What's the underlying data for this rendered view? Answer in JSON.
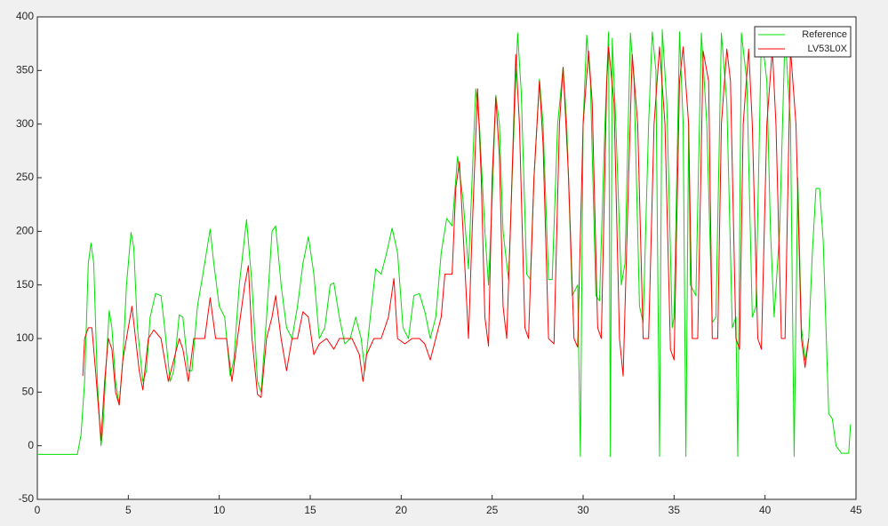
{
  "chart_data": {
    "type": "line",
    "xlim": [
      0,
      45
    ],
    "xticks": [
      0,
      5,
      10,
      15,
      20,
      25,
      30,
      35,
      40,
      45
    ],
    "ylim": [
      -50,
      400
    ],
    "yticks": [
      -50,
      0,
      50,
      100,
      150,
      200,
      250,
      300,
      350,
      400
    ],
    "grid": false,
    "legend": "top-right",
    "series": [
      {
        "name": "Reference",
        "color": "#00e000",
        "x": [
          0,
          2.2,
          2.4,
          2.6,
          2.8,
          2.95,
          3.1,
          3.3,
          3.5,
          3.6,
          3.8,
          3.95,
          4.1,
          4.3,
          4.5,
          4.7,
          4.9,
          5.15,
          5.3,
          5.5,
          5.8,
          6,
          6.2,
          6.5,
          6.8,
          7,
          7.3,
          7.5,
          7.8,
          8,
          8.3,
          8.5,
          8.8,
          9.1,
          9.5,
          9.7,
          10,
          10.3,
          10.6,
          10.8,
          11.1,
          11.5,
          11.8,
          12.1,
          12.3,
          12.6,
          12.9,
          13.1,
          13.4,
          13.7,
          14,
          14.3,
          14.6,
          14.9,
          15.2,
          15.5,
          15.8,
          16.1,
          16.3,
          16.6,
          16.9,
          17.2,
          17.5,
          17.8,
          18,
          18.3,
          18.6,
          18.9,
          19.2,
          19.5,
          19.8,
          20.1,
          20.4,
          20.7,
          21,
          21.3,
          21.6,
          21.9,
          22.2,
          22.5,
          22.8,
          23.1,
          23.4,
          23.7,
          23.9,
          24.1,
          24.3,
          24.6,
          24.8,
          25,
          25.2,
          25.4,
          25.6,
          25.9,
          26.1,
          26.4,
          26.6,
          26.9,
          27.1,
          27.3,
          27.6,
          27.8,
          28.1,
          28.3,
          28.6,
          28.9,
          29.1,
          29.4,
          29.7,
          29.85,
          30,
          30.2,
          30.4,
          30.7,
          30.9,
          31.2,
          31.4,
          31.5,
          31.6,
          31.8,
          32.1,
          32.3,
          32.6,
          32.8,
          33.1,
          33.3,
          33.6,
          33.8,
          34,
          34.2,
          34.35,
          34.6,
          34.9,
          35,
          35.3,
          35.5,
          35.65,
          35.8,
          35.9,
          36.2,
          36.5,
          36.8,
          37.1,
          37.3,
          37.6,
          37.9,
          38.2,
          38.4,
          38.5,
          38.7,
          39,
          39.3,
          39.5,
          39.8,
          40.1,
          40.3,
          40.5,
          40.8,
          41.1,
          41.4,
          41.6,
          41.8,
          42,
          42.2,
          42.4,
          42.6,
          42.8,
          43,
          43.2,
          43.5,
          43.7,
          43.9,
          44.2,
          44.4,
          44.6,
          44.7
        ],
        "values": [
          -8,
          -8,
          10,
          60,
          170,
          189,
          170,
          60,
          0,
          15,
          80,
          126,
          110,
          60,
          38,
          80,
          150,
          199,
          185,
          110,
          60,
          70,
          120,
          142,
          140,
          110,
          60,
          70,
          122,
          120,
          70,
          70,
          130,
          160,
          202,
          170,
          130,
          120,
          65,
          80,
          150,
          211,
          150,
          60,
          50,
          120,
          200,
          205,
          150,
          110,
          100,
          130,
          170,
          195,
          160,
          100,
          110,
          150,
          152,
          120,
          95,
          100,
          120,
          100,
          70,
          120,
          165,
          160,
          180,
          203,
          180,
          110,
          100,
          140,
          142,
          125,
          100,
          120,
          180,
          212,
          205,
          270,
          230,
          165,
          250,
          333,
          300,
          200,
          150,
          230,
          327,
          300,
          200,
          155,
          250,
          385,
          330,
          160,
          155,
          250,
          342,
          300,
          155,
          155,
          300,
          353,
          300,
          140,
          150,
          -10,
          300,
          383,
          340,
          140,
          135,
          300,
          386,
          -10,
          380,
          300,
          150,
          170,
          385,
          340,
          130,
          115,
          300,
          386,
          350,
          -10,
          388,
          320,
          110,
          120,
          386,
          300,
          -10,
          300,
          150,
          140,
          385,
          300,
          115,
          120,
          385,
          320,
          110,
          120,
          -10,
          385,
          340,
          120,
          130,
          385,
          340,
          200,
          120,
          200,
          385,
          300,
          -10,
          250,
          110,
          80,
          100,
          180,
          240,
          240,
          190,
          30,
          25,
          0,
          -7,
          -7,
          -7,
          20
        ]
      },
      {
        "name": "LV53L0X",
        "color": "#ff0000",
        "x": [
          2.5,
          2.6,
          2.8,
          3,
          3.2,
          3.5,
          3.7,
          3.9,
          4.1,
          4.3,
          4.5,
          4.7,
          4.9,
          5.2,
          5.4,
          5.6,
          5.8,
          6.1,
          6.4,
          6.8,
          7,
          7.2,
          7.5,
          7.8,
          8,
          8.3,
          8.6,
          8.9,
          9.2,
          9.5,
          9.8,
          10.1,
          10.4,
          10.7,
          11,
          11.4,
          11.6,
          11.8,
          12.1,
          12.3,
          12.6,
          12.9,
          13.1,
          13.4,
          13.7,
          14,
          14.3,
          14.6,
          14.9,
          15.2,
          15.5,
          15.9,
          16.3,
          16.6,
          17,
          17.3,
          17.7,
          17.9,
          18.1,
          18.5,
          18.9,
          19.3,
          19.6,
          19.8,
          20.2,
          20.6,
          21,
          21.3,
          21.6,
          21.9,
          22.2,
          22.4,
          22.8,
          23,
          23.2,
          23.4,
          23.7,
          23.9,
          24.2,
          24.4,
          24.6,
          24.8,
          25,
          25.2,
          25.4,
          25.6,
          25.8,
          26,
          26.3,
          26.5,
          26.8,
          27,
          27.3,
          27.6,
          27.8,
          28.1,
          28.4,
          28.7,
          28.9,
          29.2,
          29.5,
          29.7,
          30,
          30.3,
          30.5,
          30.8,
          31,
          31.3,
          31.4,
          31.7,
          32,
          32.2,
          32.5,
          32.7,
          33,
          33.3,
          33.6,
          33.9,
          34.2,
          34.5,
          34.8,
          35,
          35.3,
          35.5,
          35.8,
          36,
          36.3,
          36.6,
          36.9,
          37.1,
          37.4,
          37.6,
          37.9,
          38.1,
          38.4,
          38.6,
          38.8,
          39.1,
          39.3,
          39.6,
          39.8,
          40.1,
          40.4,
          40.6,
          40.9,
          41.1,
          41.4,
          41.7,
          42,
          42.2,
          42.4
        ],
        "values": [
          65,
          100,
          110,
          110,
          70,
          5,
          60,
          100,
          90,
          50,
          38,
          80,
          100,
          130,
          100,
          70,
          52,
          100,
          108,
          100,
          80,
          60,
          80,
          100,
          90,
          60,
          100,
          100,
          100,
          138,
          100,
          100,
          100,
          60,
          100,
          150,
          168,
          100,
          48,
          45,
          100,
          120,
          140,
          100,
          70,
          100,
          100,
          125,
          120,
          85,
          95,
          100,
          90,
          100,
          100,
          100,
          85,
          60,
          85,
          100,
          100,
          120,
          156,
          100,
          95,
          100,
          100,
          95,
          80,
          100,
          120,
          160,
          160,
          240,
          265,
          200,
          100,
          200,
          333,
          250,
          120,
          93,
          250,
          325,
          270,
          130,
          100,
          200,
          365,
          300,
          110,
          100,
          250,
          340,
          280,
          100,
          95,
          300,
          353,
          250,
          100,
          92,
          300,
          368,
          320,
          110,
          100,
          340,
          372,
          320,
          100,
          65,
          250,
          365,
          300,
          100,
          100,
          300,
          372,
          300,
          90,
          80,
          340,
          372,
          300,
          100,
          100,
          368,
          340,
          100,
          100,
          300,
          370,
          340,
          100,
          90,
          300,
          370,
          300,
          100,
          90,
          300,
          370,
          300,
          100,
          100,
          370,
          300,
          100,
          73,
          100
        ]
      }
    ]
  }
}
